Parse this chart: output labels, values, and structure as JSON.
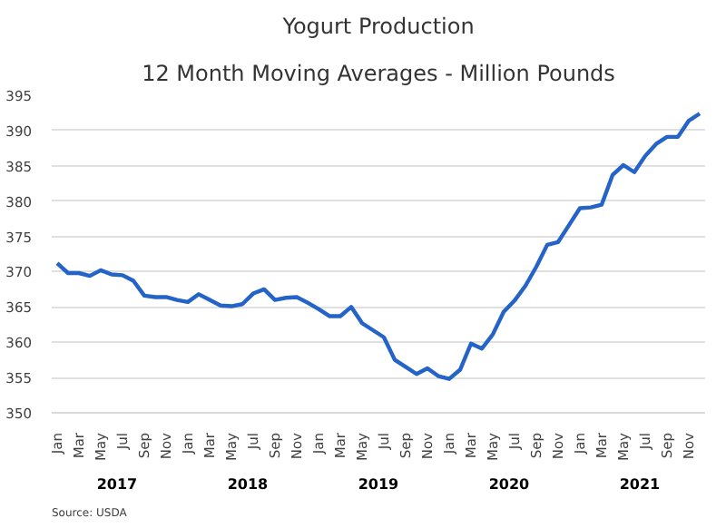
{
  "chart_data": {
    "type": "line",
    "title": "Yogurt Production",
    "subtitle": "12 Month Moving Averages - Million Pounds",
    "categories": [
      "Jan",
      null,
      "Mar",
      null,
      "May",
      null,
      "Jul",
      null,
      "Sep",
      null,
      "Nov",
      null,
      "Jan",
      null,
      "Mar",
      null,
      "May",
      null,
      "Jul",
      null,
      "Sep",
      null,
      "Nov",
      null,
      "Jan",
      null,
      "Mar",
      null,
      "May",
      null,
      "Jul",
      null,
      "Sep",
      null,
      "Nov",
      null,
      "Jan",
      null,
      "Mar",
      null,
      "May",
      null,
      "Jul",
      null,
      "Sep",
      null,
      "Nov",
      null,
      "Jan",
      null,
      "Mar",
      null,
      "May",
      null,
      "Jul",
      null,
      "Sep",
      null,
      "Nov",
      null
    ],
    "series": [
      {
        "color": "#2463c7",
        "values": [
          371.2,
          369.8,
          369.8,
          369.4,
          370.2,
          369.6,
          369.5,
          368.7,
          366.6,
          366.4,
          366.4,
          366.0,
          365.7,
          366.8,
          366.0,
          365.2,
          365.1,
          365.4,
          366.9,
          367.5,
          366.0,
          366.3,
          366.4,
          365.6,
          364.7,
          363.7,
          363.7,
          365.0,
          362.7,
          361.7,
          360.7,
          357.5,
          356.5,
          355.5,
          356.3,
          355.2,
          354.8,
          356.1,
          359.8,
          359.1,
          361.1,
          364.3,
          365.9,
          368.0,
          370.7,
          373.8,
          374.2,
          376.6,
          379.0,
          379.1,
          379.5,
          383.7,
          385.1,
          384.1,
          386.4,
          388.1,
          389.1,
          389.1,
          391.4,
          392.4
        ]
      }
    ],
    "ylim": [
      350,
      395
    ],
    "yticks": [
      350,
      355,
      360,
      365,
      370,
      375,
      380,
      385,
      390,
      395
    ],
    "grid": "y",
    "marker": "none",
    "line_style": "solid",
    "annotations": [
      "2017",
      "2018",
      "2019",
      "2020",
      "2021",
      "Source: USDA"
    ]
  }
}
